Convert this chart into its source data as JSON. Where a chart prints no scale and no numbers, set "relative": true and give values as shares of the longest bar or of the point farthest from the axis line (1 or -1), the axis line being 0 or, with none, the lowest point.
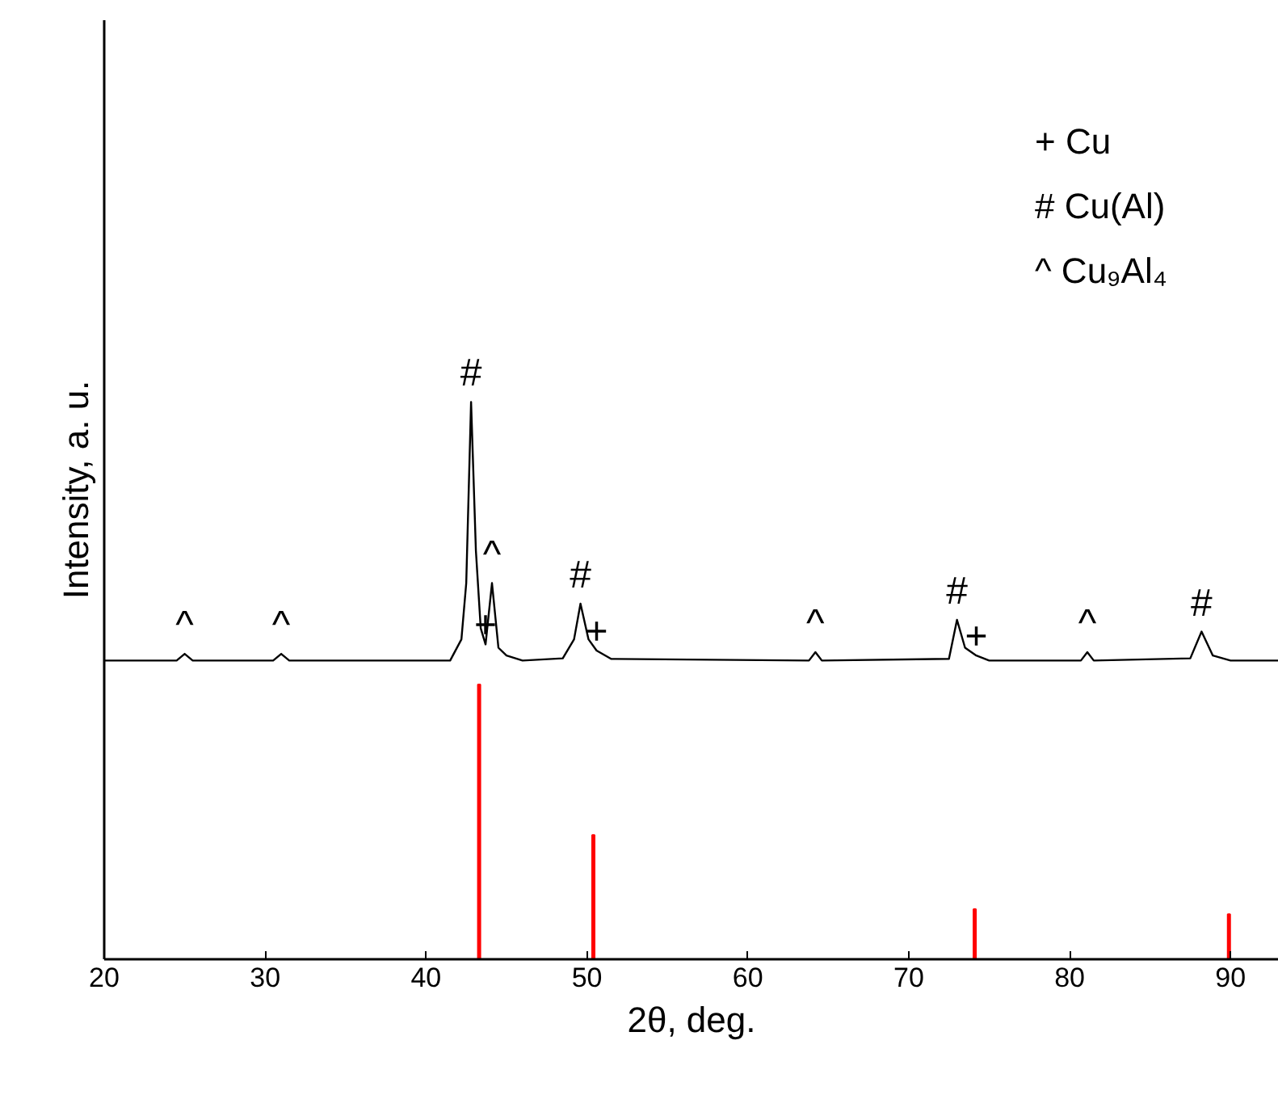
{
  "chart_data": {
    "type": "line",
    "relative": true,
    "xlabel": "2θ, deg.",
    "ylabel": "Intensity, a. u.",
    "xlim": [
      20,
      93
    ],
    "xticks": [
      20,
      30,
      40,
      50,
      60,
      70,
      80,
      90
    ],
    "tick_labels": "x",
    "grid": false,
    "marker": "none",
    "line_style": "solid",
    "series": [
      {
        "color": "#000000",
        "x": [
          20,
          24.5,
          25,
          25.5,
          30.5,
          31,
          31.5,
          38,
          41.5,
          42.2,
          42.5,
          42.8,
          43.1,
          43.4,
          43.7,
          44.1,
          44.5,
          45,
          46,
          48.5,
          49.2,
          49.6,
          50.1,
          50.6,
          51.5,
          63.8,
          64.2,
          64.6,
          72.5,
          73.0,
          73.5,
          74.2,
          75,
          80.7,
          81.1,
          81.5,
          87.5,
          88.2,
          88.9,
          90,
          93
        ],
        "values": [
          0.536,
          0.536,
          0.548,
          0.536,
          0.536,
          0.548,
          0.536,
          0.536,
          0.536,
          0.574,
          0.675,
          1.0,
          0.733,
          0.594,
          0.565,
          0.675,
          0.559,
          0.545,
          0.536,
          0.54,
          0.574,
          0.638,
          0.574,
          0.554,
          0.539,
          0.536,
          0.551,
          0.536,
          0.539,
          0.609,
          0.559,
          0.545,
          0.536,
          0.536,
          0.551,
          0.536,
          0.54,
          0.588,
          0.545,
          0.536,
          0.536
        ]
      },
      {
        "type": "bar",
        "color": "#ff0000",
        "x": [
          43.3,
          50.4,
          74.1,
          89.9
        ],
        "values": [
          0.493,
          0.223,
          0.09,
          0.081
        ]
      }
    ],
    "annotations": [
      {
        "text": "^",
        "x": 25,
        "y": 0.548
      },
      {
        "text": "^",
        "x": 31,
        "y": 0.548
      },
      {
        "text": "#",
        "x": 42.8,
        "y": 1.0
      },
      {
        "text": "+",
        "x": 43.7,
        "y": 0.565
      },
      {
        "text": "^",
        "x": 44.1,
        "y": 0.675
      },
      {
        "text": "#",
        "x": 49.6,
        "y": 0.638
      },
      {
        "text": "+",
        "x": 50.6,
        "y": 0.554
      },
      {
        "text": "^",
        "x": 64.2,
        "y": 0.551
      },
      {
        "text": "#",
        "x": 73.0,
        "y": 0.609
      },
      {
        "text": "+",
        "x": 74.2,
        "y": 0.545
      },
      {
        "text": "^",
        "x": 81.1,
        "y": 0.551
      },
      {
        "text": "#",
        "x": 88.2,
        "y": 0.588
      },
      "+ Cu",
      "# Cu(Al)",
      "^ Cu₉Al₄"
    ]
  }
}
